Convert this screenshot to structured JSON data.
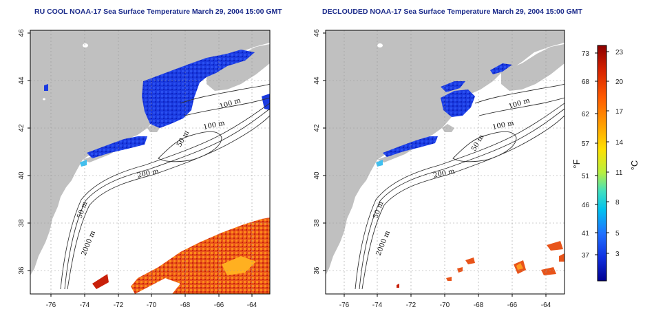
{
  "titles": {
    "left": "RU COOL NOAA-17 Sea Surface Temperature March 29, 2004 15:00 GMT",
    "right": "DECLOUDED NOAA-17 Sea Surface Temperature March 29, 2004 15:00 GMT"
  },
  "lon_ticks": [
    "-76",
    "-74",
    "-72",
    "-70",
    "-68",
    "-66",
    "-64"
  ],
  "lat_ticks": [
    "46",
    "44",
    "42",
    "40",
    "38",
    "36"
  ],
  "contours": [
    "100 m",
    "100 m",
    "50 m",
    "200 m",
    "50 m",
    "2000 m"
  ],
  "colorbar": {
    "fahrenheit": [
      "73",
      "68",
      "62",
      "57",
      "51",
      "46",
      "41",
      "37"
    ],
    "celsius": [
      "23",
      "20",
      "17",
      "14",
      "11",
      "8",
      "5",
      "3"
    ],
    "unit_f": "°F",
    "unit_c": "°C",
    "colors": [
      "#8b0000",
      "#d42000",
      "#ff5a00",
      "#ffa000",
      "#ffe000",
      "#b8f040",
      "#40e0c0",
      "#00c0f0",
      "#2070ff",
      "#1030e0",
      "#000090"
    ]
  },
  "colors": {
    "land": "#c0c0c0",
    "cold_sst": "#1a3ae0",
    "warm_sst": "#e8541a",
    "title": "#1a2a8a"
  }
}
